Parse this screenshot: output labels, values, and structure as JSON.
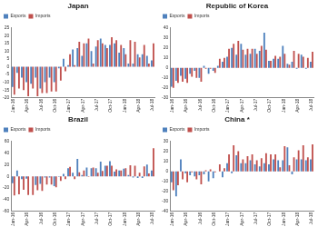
{
  "chart_data": [
    {
      "type": "bar",
      "title": "Japan",
      "categories": [
        "Jan-16",
        null,
        null,
        "Apr-16",
        null,
        null,
        "Jul-16",
        null,
        null,
        "Oct-16",
        null,
        null,
        "Jan-17",
        null,
        null,
        "Apr-17",
        null,
        null,
        "Jul-17",
        null,
        null,
        "Oct-17",
        null,
        null,
        "Jan-18",
        null,
        null,
        "Apr-18",
        null,
        null,
        "Jul-18"
      ],
      "series": [
        {
          "name": "Exports",
          "color": "#4f81bd",
          "values": [
            -13,
            -4,
            -7,
            -10,
            -11,
            -7,
            -14,
            -10,
            -7,
            -10,
            -1,
            5,
            1,
            11,
            12,
            7,
            15,
            10,
            13,
            18,
            14,
            14,
            15,
            9,
            12,
            2,
            2,
            8,
            8,
            7,
            4
          ]
        },
        {
          "name": "Imports",
          "color": "#c0504d",
          "values": [
            -18,
            -14,
            -15,
            -19,
            -14,
            -19,
            -17,
            -17,
            -16,
            -16,
            -9,
            -3,
            8,
            1,
            16,
            15,
            18,
            2,
            17,
            15,
            12,
            19,
            17,
            14,
            8,
            17,
            16,
            6,
            14,
            2,
            15
          ]
        }
      ],
      "ylim": [
        -20,
        25
      ],
      "yticks": [
        -20,
        -15,
        -10,
        -5,
        0,
        5,
        10,
        15,
        20,
        25
      ],
      "grid": false,
      "legend": "upper left"
    },
    {
      "type": "bar",
      "title": "Republic of Korea",
      "categories": [
        "Jan-16",
        null,
        null,
        "Apr-16",
        null,
        null,
        "Jul-16",
        null,
        null,
        "Oct-16",
        null,
        null,
        "Jan-17",
        null,
        null,
        "Apr-17",
        null,
        null,
        "Jul-17",
        null,
        null,
        "Oct-17",
        null,
        null,
        "Jan-18",
        null,
        null,
        "Apr-18",
        null,
        null,
        "Jul-18"
      ],
      "series": [
        {
          "name": "Exports",
          "color": "#4f81bd",
          "values": [
            -19,
            -13,
            -8,
            -11,
            -6,
            -3,
            -10,
            2,
            -6,
            -3,
            2,
            6,
            11,
            20,
            13,
            24,
            13,
            14,
            19,
            17,
            35,
            7,
            9,
            9,
            22,
            4,
            6,
            -1,
            13,
            -1,
            6
          ]
        },
        {
          "name": "Imports",
          "color": "#c0504d",
          "values": [
            -20,
            -15,
            -14,
            -15,
            -9,
            -10,
            -14,
            -1,
            -1,
            -5,
            9,
            10,
            19,
            24,
            27,
            18,
            19,
            19,
            14,
            22,
            18,
            7,
            12,
            11,
            14,
            3,
            17,
            14,
            11,
            10,
            16
          ]
        }
      ],
      "ylim": [
        -30,
        40
      ],
      "yticks": [
        -30,
        -20,
        -10,
        0,
        10,
        20,
        30,
        40
      ],
      "grid": false,
      "legend": "upper left"
    },
    {
      "type": "bar",
      "title": "Brazil",
      "categories": [
        "Jan-16",
        null,
        null,
        "Apr-16",
        null,
        null,
        "Jul-16",
        null,
        null,
        "Oct-16",
        null,
        null,
        "Jan-17",
        null,
        null,
        "Apr-17",
        null,
        null,
        "Jul-17",
        null,
        null,
        "Oct-17",
        null,
        null,
        "Jan-18",
        null,
        null,
        "Apr-18",
        null,
        null,
        "Jul-18"
      ],
      "series": [
        {
          "name": "Exports",
          "color": "#4f81bd",
          "values": [
            -12,
            10,
            -5,
            -4,
            0,
            -15,
            -13,
            -2,
            -2,
            -17,
            -1,
            4,
            14,
            6,
            30,
            2,
            15,
            14,
            14,
            25,
            18,
            26,
            8,
            10,
            13,
            2,
            -2,
            -3,
            -3,
            20,
            10
          ]
        },
        {
          "name": "Imports",
          "color": "#c0504d",
          "values": [
            -33,
            -31,
            -23,
            -32,
            -32,
            -24,
            -25,
            -14,
            -14,
            -19,
            -8,
            -5,
            16,
            -5,
            7,
            10,
            -1,
            15,
            6,
            9,
            18,
            18,
            12,
            10,
            14,
            19,
            18,
            6,
            17,
            5,
            48
          ]
        }
      ],
      "ylim": [
        -60,
        60
      ],
      "yticks": [
        -60,
        -40,
        -20,
        0,
        20,
        40,
        60
      ],
      "grid": false,
      "legend": "upper left"
    },
    {
      "type": "bar",
      "title": "China *",
      "categories": [
        "Jan-16",
        null,
        null,
        "Apr-16",
        null,
        null,
        "Jul-16",
        null,
        null,
        "Oct-16",
        null,
        null,
        "Jan-17",
        null,
        null,
        "Apr-17",
        null,
        null,
        "Jul-17",
        null,
        null,
        "Oct-17",
        null,
        null,
        "Jan-18",
        null,
        null,
        "Apr-18",
        null,
        null,
        "Jul-18"
      ],
      "series": [
        {
          "name": "Exports",
          "color": "#4f81bd",
          "values": [
            -11,
            -25,
            12,
            -2,
            -4,
            -5,
            -4,
            -3,
            -10,
            -7,
            0,
            -6,
            8,
            -2,
            16,
            8,
            8,
            11,
            7,
            5,
            8,
            7,
            12,
            11,
            11,
            24,
            -3,
            12,
            12,
            11,
            12
          ]
        },
        {
          "name": "Imports",
          "color": "#c0504d",
          "values": [
            -19,
            -14,
            -8,
            -11,
            -1,
            -8,
            -13,
            1,
            2,
            -1,
            7,
            3,
            17,
            26,
            20,
            12,
            15,
            17,
            11,
            13,
            18,
            17,
            17,
            4,
            25,
            6,
            14,
            21,
            26,
            14,
            27
          ]
        }
      ],
      "ylim": [
        -40,
        30
      ],
      "yticks": [
        -40,
        -30,
        -20,
        -10,
        0,
        10,
        20,
        30
      ],
      "grid": false,
      "legend": "upper left"
    }
  ]
}
